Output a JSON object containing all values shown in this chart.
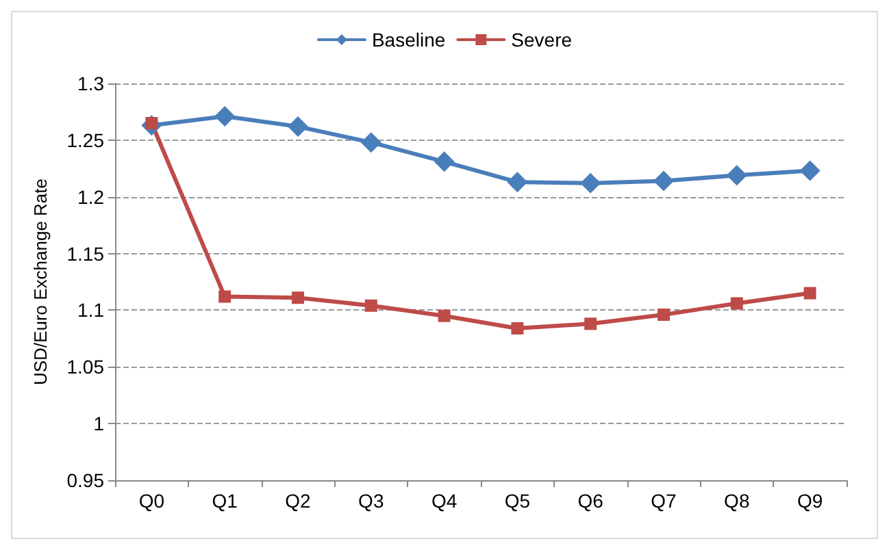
{
  "chart_data": {
    "type": "line",
    "ylabel": "USD/Euro Exchange Rate",
    "categories": [
      "Q0",
      "Q1",
      "Q2",
      "Q3",
      "Q4",
      "Q5",
      "Q6",
      "Q7",
      "Q8",
      "Q9"
    ],
    "series": [
      {
        "name": "Baseline",
        "color": "#4a7ebb",
        "marker": "diamond",
        "values": [
          1.263,
          1.271,
          1.262,
          1.248,
          1.231,
          1.213,
          1.212,
          1.214,
          1.219,
          1.223
        ]
      },
      {
        "name": "Severe",
        "color": "#be4b48",
        "marker": "square",
        "values": [
          1.265,
          1.112,
          1.111,
          1.104,
          1.095,
          1.084,
          1.088,
          1.096,
          1.106,
          1.115
        ]
      }
    ],
    "ylim": [
      0.95,
      1.3
    ],
    "yticks": [
      0.95,
      1,
      1.05,
      1.1,
      1.15,
      1.2,
      1.25,
      1.3
    ],
    "grid": "y",
    "legend": "top",
    "line_style": "solid"
  }
}
